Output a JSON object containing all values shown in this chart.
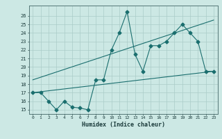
{
  "title": "",
  "xlabel": "Humidex (Indice chaleur)",
  "ylabel": "",
  "bg_color": "#cce8e4",
  "grid_color": "#aaccc8",
  "line_color": "#1a6e6e",
  "xlim": [
    -0.5,
    23.5
  ],
  "ylim": [
    14.5,
    27.2
  ],
  "xticks": [
    0,
    1,
    2,
    3,
    4,
    5,
    6,
    7,
    8,
    9,
    10,
    11,
    12,
    13,
    14,
    15,
    16,
    17,
    18,
    19,
    20,
    21,
    22,
    23
  ],
  "yticks": [
    15,
    16,
    17,
    18,
    19,
    20,
    21,
    22,
    23,
    24,
    25,
    26
  ],
  "line1_x": [
    0,
    1,
    2,
    3,
    4,
    5,
    6,
    7,
    8,
    9,
    10,
    11,
    12,
    13,
    14,
    15,
    16,
    17,
    18,
    19,
    20,
    21,
    22,
    23
  ],
  "line1_y": [
    17,
    17,
    16,
    15,
    16,
    15.3,
    15.2,
    15,
    18.5,
    18.5,
    22,
    24,
    26.5,
    21.5,
    19.5,
    22.5,
    22.5,
    23,
    24,
    25,
    24,
    23,
    19.5,
    19.5
  ],
  "line2_x": [
    0,
    23
  ],
  "line2_y": [
    17.0,
    19.5
  ],
  "line3_x": [
    0,
    23
  ],
  "line3_y": [
    18.5,
    25.5
  ],
  "marker_size": 2.5,
  "linewidth": 0.8
}
